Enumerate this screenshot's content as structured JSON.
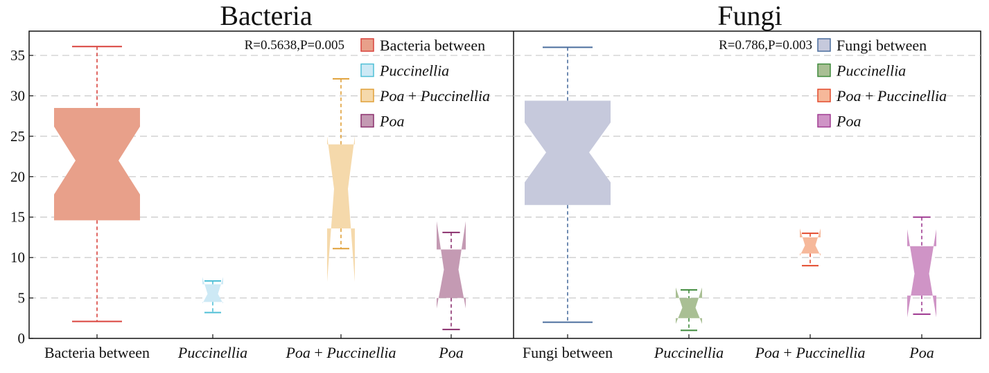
{
  "chart_data": [
    {
      "type": "box",
      "title": "Bacteria",
      "annotation": "R=0.5638,P=0.005",
      "ylim": [
        0,
        38
      ],
      "yticks": [
        0,
        5,
        10,
        15,
        20,
        25,
        30,
        35
      ],
      "grid": "horizontal dashed",
      "legend": "top-right",
      "categories": [
        {
          "parts": [
            {
              "t": "Bacteria between",
              "i": false
            }
          ]
        },
        {
          "parts": [
            {
              "t": "Puccinellia",
              "i": true
            }
          ]
        },
        {
          "parts": [
            {
              "t": "Poa",
              "i": true
            },
            {
              "t": " + ",
              "i": false
            },
            {
              "t": "Puccinellia",
              "i": true
            }
          ]
        },
        {
          "parts": [
            {
              "t": "Poa",
              "i": true
            }
          ]
        }
      ],
      "series": [
        {
          "legend": [
            {
              "t": "Bacteria between",
              "i": false
            }
          ],
          "color": "#e8a08a",
          "line": "#d9423c",
          "min": 2.1,
          "q1": 14.6,
          "median": 22.0,
          "q3": 28.5,
          "max": 36.1,
          "notch_low": 17.8,
          "notch_high": 26.2
        },
        {
          "legend": [
            {
              "t": "Puccinellia",
              "i": true
            }
          ],
          "color": "#cde9f5",
          "line": "#4fbfd6",
          "min": 3.2,
          "q1": 4.5,
          "median": 5.5,
          "q3": 6.7,
          "max": 7.1,
          "notch_low": 4.3,
          "notch_high": 7.6
        },
        {
          "legend": [
            {
              "t": "Poa",
              "i": true
            },
            {
              "t": " + ",
              "i": false
            },
            {
              "t": "Puccinellia",
              "i": true
            }
          ],
          "color": "#f5d9ab",
          "line": "#e0a038",
          "min": 11.1,
          "q1": 13.6,
          "median": 18.5,
          "q3": 24.0,
          "max": 32.1,
          "notch_low": 7.0,
          "notch_high": 25.0
        },
        {
          "legend": [
            {
              "t": "Poa",
              "i": true
            }
          ],
          "color": "#c49ab3",
          "line": "#8a2f6d",
          "min": 1.1,
          "q1": 5.0,
          "median": 8.5,
          "q3": 11.0,
          "max": 13.1,
          "notch_low": 3.7,
          "notch_high": 14.5
        }
      ]
    },
    {
      "type": "box",
      "title": "Fungi",
      "annotation": "R=0.786,P=0.003",
      "ylim": [
        0,
        38
      ],
      "yticks": [
        0,
        5,
        10,
        15,
        20,
        25,
        30,
        35
      ],
      "grid": "horizontal dashed",
      "legend": "top-right",
      "categories": [
        {
          "parts": [
            {
              "t": "Fungi between",
              "i": false
            }
          ]
        },
        {
          "parts": [
            {
              "t": "Puccinellia",
              "i": true
            }
          ]
        },
        {
          "parts": [
            {
              "t": "Poa",
              "i": true
            },
            {
              "t": " + ",
              "i": false
            },
            {
              "t": "Puccinellia",
              "i": true
            }
          ]
        },
        {
          "parts": [
            {
              "t": "Poa",
              "i": true
            }
          ]
        }
      ],
      "series": [
        {
          "legend": [
            {
              "t": "Fungi between",
              "i": false
            }
          ],
          "color": "#c6c9dc",
          "line": "#4b6e9e",
          "min": 2.0,
          "q1": 16.5,
          "median": 23.0,
          "q3": 29.4,
          "max": 36.0,
          "notch_low": 19.3,
          "notch_high": 26.7
        },
        {
          "legend": [
            {
              "t": "Puccinellia",
              "i": true
            }
          ],
          "color": "#a9bf94",
          "line": "#3f8a3b",
          "min": 1.0,
          "q1": 2.5,
          "median": 3.8,
          "q3": 5.0,
          "max": 6.0,
          "notch_low": 1.8,
          "notch_high": 6.3
        },
        {
          "legend": [
            {
              "t": "Poa",
              "i": true
            },
            {
              "t": " + ",
              "i": false
            },
            {
              "t": "Puccinellia",
              "i": true
            }
          ],
          "color": "#f6b89a",
          "line": "#e34a2c",
          "min": 9.0,
          "q1": 10.5,
          "median": 11.5,
          "q3": 12.5,
          "max": 13.0,
          "notch_low": 10.2,
          "notch_high": 13.6
        },
        {
          "legend": [
            {
              "t": "Poa",
              "i": true
            }
          ],
          "color": "#cf94c6",
          "line": "#a03c92",
          "min": 3.0,
          "q1": 5.3,
          "median": 8.0,
          "q3": 11.4,
          "max": 15.0,
          "notch_low": 2.6,
          "notch_high": 13.5
        }
      ]
    }
  ]
}
